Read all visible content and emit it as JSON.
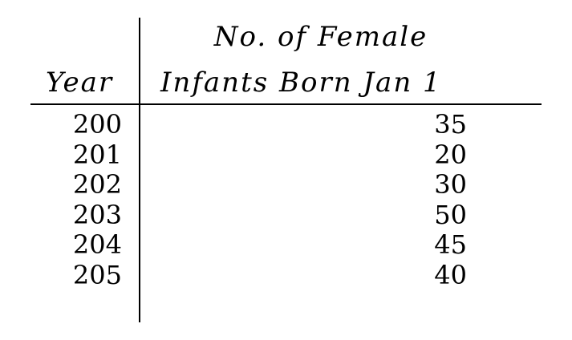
{
  "table": {
    "headers": {
      "year": "Year",
      "count_line1": "No. of Female",
      "count_line2": "Infants Born Jan 1"
    },
    "rows": [
      {
        "year": "200",
        "count": "35"
      },
      {
        "year": "201",
        "count": "20"
      },
      {
        "year": "202",
        "count": "30"
      },
      {
        "year": "203",
        "count": "50"
      },
      {
        "year": "204",
        "count": "45"
      },
      {
        "year": "205",
        "count": "40"
      }
    ]
  }
}
